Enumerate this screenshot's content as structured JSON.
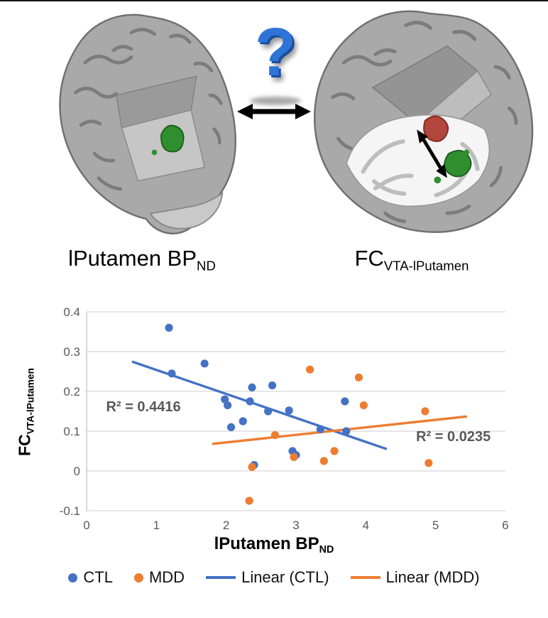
{
  "figure": {
    "question_mark": "?",
    "left_label": {
      "main": "lPutamen BP",
      "sub": "ND"
    },
    "right_label": {
      "main": "FC",
      "sub": "VTA-lPutamen"
    }
  },
  "chart_data": {
    "type": "scatter",
    "title": "",
    "xlabel": {
      "main": "lPutamen BP",
      "sub": "ND"
    },
    "ylabel": {
      "main": "FC",
      "sub": "VTA-lPutamen"
    },
    "xlim": [
      0,
      6
    ],
    "ylim": [
      -0.1,
      0.4
    ],
    "x_ticks": [
      0,
      1,
      2,
      3,
      4,
      5,
      6
    ],
    "y_ticks": [
      -0.1,
      0,
      0.1,
      0.2,
      0.3,
      0.4
    ],
    "grid": "horizontal",
    "series": [
      {
        "name": "CTL",
        "color": "#4472C4",
        "points": [
          [
            1.18,
            0.36
          ],
          [
            1.22,
            0.245
          ],
          [
            1.69,
            0.27
          ],
          [
            1.98,
            0.18
          ],
          [
            2.02,
            0.165
          ],
          [
            2.07,
            0.11
          ],
          [
            2.24,
            0.125
          ],
          [
            2.34,
            0.175
          ],
          [
            2.37,
            0.21
          ],
          [
            2.4,
            0.015
          ],
          [
            2.6,
            0.15
          ],
          [
            2.66,
            0.215
          ],
          [
            2.9,
            0.152
          ],
          [
            2.95,
            0.05
          ],
          [
            3.0,
            0.04
          ],
          [
            3.35,
            0.105
          ],
          [
            3.7,
            0.175
          ],
          [
            3.72,
            0.1
          ]
        ]
      },
      {
        "name": "MDD",
        "color": "#ED7D31",
        "points": [
          [
            2.33,
            -0.075
          ],
          [
            2.37,
            0.01
          ],
          [
            2.7,
            0.09
          ],
          [
            2.97,
            0.035
          ],
          [
            3.2,
            0.255
          ],
          [
            3.4,
            0.025
          ],
          [
            3.55,
            0.05
          ],
          [
            3.9,
            0.235
          ],
          [
            3.97,
            0.165
          ],
          [
            4.85,
            0.15
          ],
          [
            4.9,
            0.02
          ]
        ]
      }
    ],
    "trendlines": [
      {
        "name": "Linear (CTL)",
        "color": "#4472C4",
        "start": [
          0.65,
          0.275
        ],
        "end": [
          4.3,
          0.055
        ],
        "label": "R² = 0.4416",
        "label_pos": [
          0.28,
          0.15
        ]
      },
      {
        "name": "Linear (MDD)",
        "color": "#ED7D31",
        "start": [
          1.8,
          0.068
        ],
        "end": [
          5.45,
          0.137
        ],
        "label": "R² = 0.0235",
        "label_pos": [
          4.72,
          0.075
        ]
      }
    ],
    "legend": [
      {
        "label": "CTL",
        "marker": "dot",
        "color": "#4472C4"
      },
      {
        "label": "MDD",
        "marker": "dot",
        "color": "#ED7D31"
      },
      {
        "label": "Linear (CTL)",
        "marker": "line",
        "color": "#4472C4"
      },
      {
        "label": "Linear (MDD)",
        "marker": "line",
        "color": "#ED7D31"
      }
    ]
  }
}
